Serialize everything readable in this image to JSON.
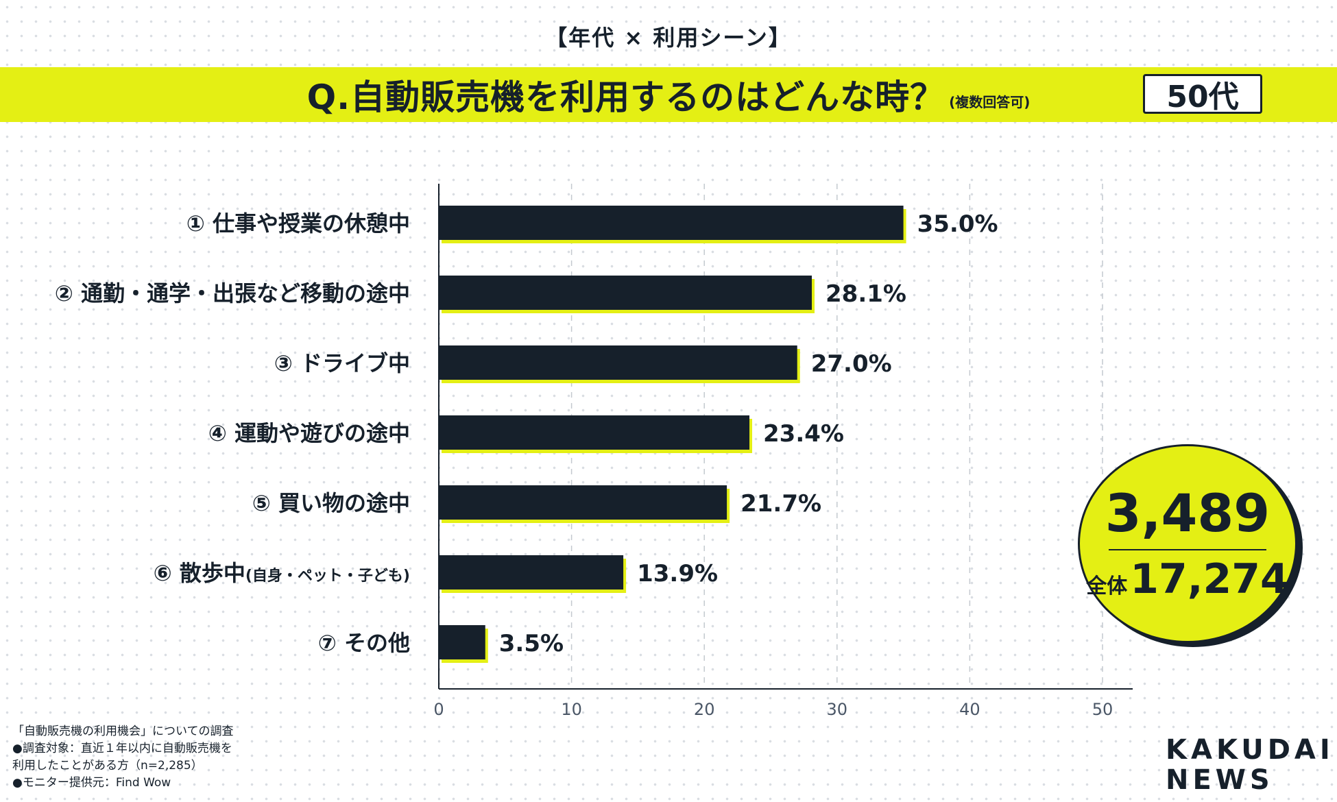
{
  "header": {
    "topic": "【年代 × 利用シーン】",
    "question": "Q.自動販売機を利用するのはどんな時？",
    "question_note": "(複数回答可)",
    "age_group": "50代"
  },
  "chart_data": {
    "type": "bar",
    "orientation": "horizontal",
    "categories": [
      "① 仕事や授業の休憩中",
      "② 通勤・通学・出張など移動の途中",
      "③ ドライブ中",
      "④ 運動や遊びの途中",
      "⑤ 買い物の途中",
      "⑥ 散歩中",
      "⑦ その他"
    ],
    "category_notes": [
      "",
      "",
      "",
      "",
      "",
      "(自身・ペット・子ども)",
      ""
    ],
    "values": [
      35.0,
      28.1,
      27.0,
      23.4,
      21.7,
      13.9,
      3.5
    ],
    "value_labels": [
      "35.0%",
      "28.1%",
      "27.0%",
      "23.4%",
      "21.7%",
      "13.9%",
      "3.5%"
    ],
    "xlim": [
      0,
      50
    ],
    "xticks": [
      0,
      10,
      20,
      30,
      40,
      50
    ],
    "grid": "vertical dashed",
    "bar_color": "#16202b",
    "accent_color": "#e4ef14"
  },
  "sample": {
    "segment_n": "3,489",
    "total_label": "全体",
    "total_n": "17,274"
  },
  "footnote": {
    "line1": "「自動販売機の利用機会」についての調査",
    "line2": "●調査対象：直近１年以内に自動販売機を",
    "line3": "利用したことがある方（n=2,285）",
    "line4": "●モニター提供元：Find Wow"
  },
  "logo": {
    "line1": "KAKUDAI",
    "line2": "NEWS"
  }
}
